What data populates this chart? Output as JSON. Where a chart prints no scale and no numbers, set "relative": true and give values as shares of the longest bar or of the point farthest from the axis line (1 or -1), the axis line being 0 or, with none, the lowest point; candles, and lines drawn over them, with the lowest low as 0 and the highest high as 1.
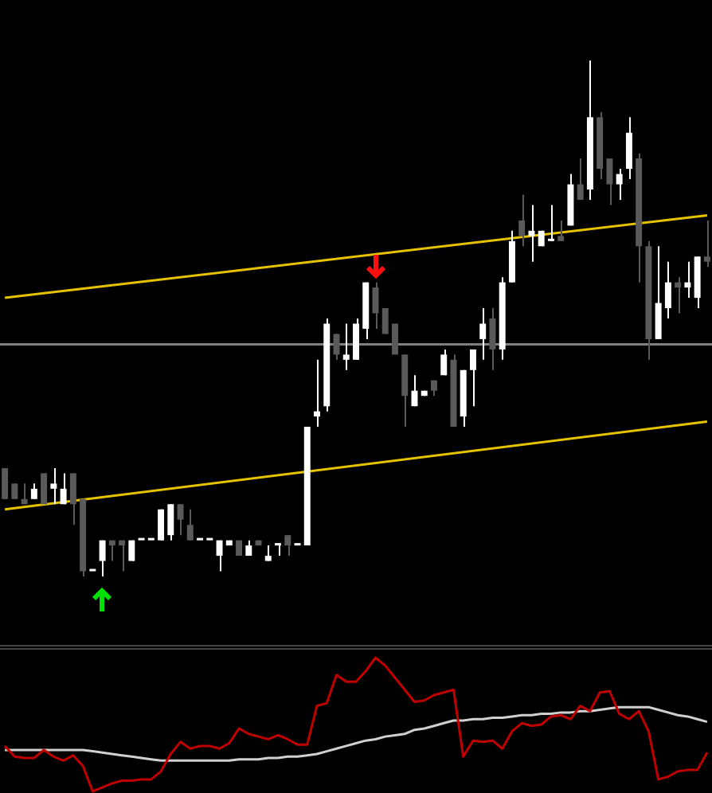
{
  "chart_data": [
    {
      "type": "candlestick",
      "relative": true,
      "categories": [
        null,
        null,
        null,
        null,
        null,
        null,
        null,
        null,
        null,
        null,
        null,
        null,
        null,
        null,
        null,
        null,
        null,
        null,
        null,
        null,
        null,
        null,
        null,
        null,
        null,
        null,
        null,
        null,
        null,
        null,
        null,
        null,
        null,
        null,
        null,
        null,
        null,
        null,
        null,
        null,
        null,
        null,
        null,
        null,
        null,
        null,
        null,
        null,
        null,
        null,
        null,
        null,
        null,
        null,
        null,
        null,
        null,
        null,
        null,
        null,
        null,
        null,
        null,
        null,
        null,
        null,
        null,
        null,
        null,
        null,
        null,
        null,
        null
      ],
      "ohlc": [
        [
          0.21,
          0.21,
          0.15,
          0.15
        ],
        [
          0.18,
          0.18,
          0.15,
          0.15
        ],
        [
          0.15,
          0.18,
          0.14,
          0.14
        ],
        [
          0.15,
          0.18,
          0.15,
          0.17
        ],
        [
          0.2,
          0.2,
          0.14,
          0.14
        ],
        [
          0.17,
          0.21,
          0.14,
          0.18
        ],
        [
          0.14,
          0.2,
          0.14,
          0.17
        ],
        [
          0.2,
          0.2,
          0.1,
          0.14
        ],
        [
          0.15,
          0.15,
          0,
          0.01
        ],
        [
          0.01,
          0.01,
          0.01,
          0.01
        ],
        [
          0.03,
          0.07,
          0,
          0.07
        ],
        [
          0.07,
          0.07,
          0.03,
          0.06
        ],
        [
          0.07,
          0.07,
          0.01,
          0.06
        ],
        [
          0.03,
          0.07,
          0.03,
          0.07
        ],
        [
          0.07,
          0.07,
          0.07,
          0.07
        ],
        [
          0.07,
          0.07,
          0.07,
          0.07
        ],
        [
          0.07,
          0.13,
          0.07,
          0.13
        ],
        [
          0.08,
          0.14,
          0.07,
          0.14
        ],
        [
          0.14,
          0.14,
          0.08,
          0.11
        ],
        [
          0.1,
          0.13,
          0.07,
          0.07
        ],
        [
          0.07,
          0.07,
          0.07,
          0.07
        ],
        [
          0.07,
          0.07,
          0.07,
          0.07
        ],
        [
          0.04,
          0.07,
          0.01,
          0.07
        ],
        [
          0.06,
          0.07,
          0.06,
          0.07
        ],
        [
          0.07,
          0.07,
          0.04,
          0.04
        ],
        [
          0.04,
          0.07,
          0.04,
          0.06
        ],
        [
          0.07,
          0.07,
          0.06,
          0.06
        ],
        [
          0.03,
          0.06,
          0.03,
          0.04
        ],
        [
          0.06,
          0.06,
          0.04,
          0.06
        ],
        [
          0.08,
          0.08,
          0.04,
          0.06
        ],
        [
          0.06,
          0.06,
          0.06,
          0.06
        ],
        [
          0.06,
          0.29,
          0.06,
          0.29
        ],
        [
          0.31,
          0.42,
          0.29,
          0.32
        ],
        [
          0.33,
          0.5,
          0.32,
          0.49
        ],
        [
          0.47,
          0.47,
          0.42,
          0.43
        ],
        [
          0.42,
          0.49,
          0.4,
          0.43
        ],
        [
          0.42,
          0.5,
          0.42,
          0.49
        ],
        [
          0.48,
          0.57,
          0.46,
          0.57
        ],
        [
          0.56,
          0.57,
          0.48,
          0.51
        ],
        [
          0.52,
          0.52,
          0.47,
          0.47
        ],
        [
          0.49,
          0.49,
          0.43,
          0.43
        ],
        [
          0.43,
          0.43,
          0.29,
          0.35
        ],
        [
          0.33,
          0.39,
          0.33,
          0.36
        ],
        [
          0.35,
          0.36,
          0.35,
          0.36
        ],
        [
          0.38,
          0.38,
          0.35,
          0.36
        ],
        [
          0.39,
          0.44,
          0.39,
          0.43
        ],
        [
          0.42,
          0.43,
          0.29,
          0.29
        ],
        [
          0.31,
          0.4,
          0.29,
          0.4
        ],
        [
          0.4,
          0.44,
          0.33,
          0.44
        ],
        [
          0.46,
          0.52,
          0.42,
          0.49
        ],
        [
          0.5,
          0.52,
          0.4,
          0.44
        ],
        [
          0.44,
          0.58,
          0.42,
          0.57
        ],
        [
          0.57,
          0.67,
          0.57,
          0.65
        ],
        [
          0.69,
          0.74,
          0.64,
          0.66
        ],
        [
          0.66,
          0.72,
          0.61,
          0.67
        ],
        [
          0.64,
          0.67,
          0.64,
          0.67
        ],
        [
          0.65,
          0.72,
          0.65,
          0.65
        ],
        [
          0.66,
          0.69,
          0.65,
          0.65
        ],
        [
          0.68,
          0.78,
          0.68,
          0.76
        ],
        [
          0.76,
          0.81,
          0.73,
          0.73
        ],
        [
          0.75,
          1,
          0.73,
          0.89
        ],
        [
          0.89,
          0.9,
          0.77,
          0.79
        ],
        [
          0.81,
          0.81,
          0.72,
          0.76
        ],
        [
          0.76,
          0.79,
          0.73,
          0.78
        ],
        [
          0.79,
          0.89,
          0.77,
          0.86
        ],
        [
          0.81,
          0.82,
          0.57,
          0.64
        ],
        [
          0.64,
          0.65,
          0.42,
          0.46
        ],
        [
          0.46,
          0.64,
          0.46,
          0.53
        ],
        [
          0.52,
          0.61,
          0.5,
          0.57
        ],
        [
          0.57,
          0.58,
          0.51,
          0.56
        ],
        [
          0.56,
          0.61,
          0.54,
          0.57
        ],
        [
          0.54,
          0.62,
          0.52,
          0.62
        ],
        [
          0.62,
          0.69,
          0.6,
          0.61
        ]
      ],
      "colors": [
        "#5a5a5a",
        "#5a5a5a",
        "#5a5a5a",
        "#ffffff",
        "#5a5a5a",
        "#ffffff",
        "#ffffff",
        "#5a5a5a",
        "#5a5a5a",
        "#ffffff",
        "#ffffff",
        "#5a5a5a",
        "#5a5a5a",
        "#ffffff",
        "#ffffff",
        "#ffffff",
        "#ffffff",
        "#ffffff",
        "#5a5a5a",
        "#5a5a5a",
        "#ffffff",
        "#ffffff",
        "#ffffff",
        "#ffffff",
        "#5a5a5a",
        "#ffffff",
        "#5a5a5a",
        "#ffffff",
        "#ffffff",
        "#5a5a5a",
        "#ffffff",
        "#ffffff",
        "#ffffff",
        "#ffffff",
        "#5a5a5a",
        "#ffffff",
        "#ffffff",
        "#ffffff",
        "#5a5a5a",
        "#5a5a5a",
        "#5a5a5a",
        "#5a5a5a",
        "#ffffff",
        "#ffffff",
        "#5a5a5a",
        "#ffffff",
        "#5a5a5a",
        "#ffffff",
        "#ffffff",
        "#ffffff",
        "#5a5a5a",
        "#ffffff",
        "#ffffff",
        "#5a5a5a",
        "#ffffff",
        "#ffffff",
        "#ffffff",
        "#5a5a5a",
        "#ffffff",
        "#5a5a5a",
        "#ffffff",
        "#5a5a5a",
        "#5a5a5a",
        "#ffffff",
        "#ffffff",
        "#5a5a5a",
        "#5a5a5a",
        "#ffffff",
        "#ffffff",
        "#5a5a5a",
        "#ffffff",
        "#ffffff",
        "#5a5a5a"
      ],
      "series": [
        {
          "type": "line",
          "color": "#e6c200",
          "values": [
            0.54,
            null,
            null,
            null,
            null,
            null,
            null,
            null,
            null,
            null,
            null,
            null,
            null,
            null,
            null,
            null,
            null,
            null,
            null,
            null,
            null,
            null,
            null,
            null,
            null,
            null,
            null,
            null,
            null,
            null,
            null,
            null,
            null,
            null,
            null,
            null,
            null,
            null,
            null,
            null,
            null,
            null,
            null,
            null,
            null,
            null,
            null,
            null,
            null,
            null,
            null,
            null,
            null,
            null,
            null,
            null,
            null,
            null,
            null,
            null,
            null,
            null,
            null,
            null,
            null,
            null,
            null,
            null,
            null,
            null,
            null,
            null,
            0.7
          ]
        },
        {
          "type": "line",
          "color": "#e6c200",
          "values": [
            0.13,
            null,
            null,
            null,
            null,
            null,
            null,
            null,
            null,
            null,
            null,
            null,
            null,
            null,
            null,
            null,
            null,
            null,
            null,
            null,
            null,
            null,
            null,
            null,
            null,
            null,
            null,
            null,
            null,
            null,
            null,
            null,
            null,
            null,
            null,
            null,
            null,
            null,
            null,
            null,
            null,
            null,
            null,
            null,
            null,
            null,
            null,
            null,
            null,
            null,
            null,
            null,
            null,
            null,
            null,
            null,
            null,
            null,
            null,
            null,
            null,
            null,
            null,
            null,
            null,
            null,
            null,
            null,
            null,
            null,
            null,
            null,
            0.3
          ]
        }
      ],
      "ref_lines": [
        {
          "axis": "y",
          "value": 0.45,
          "color": "#808080"
        }
      ]
    },
    {
      "type": "line",
      "relative": true,
      "categories": [
        null,
        null,
        null,
        null,
        null,
        null,
        null,
        null,
        null,
        null,
        null,
        null,
        null,
        null,
        null,
        null,
        null,
        null,
        null,
        null,
        null,
        null,
        null,
        null,
        null,
        null,
        null,
        null,
        null,
        null,
        null,
        null,
        null,
        null,
        null,
        null,
        null,
        null,
        null,
        null,
        null,
        null,
        null,
        null,
        null,
        null,
        null,
        null,
        null,
        null,
        null,
        null,
        null,
        null,
        null,
        null,
        null,
        null,
        null,
        null,
        null,
        null,
        null,
        null,
        null,
        null,
        null,
        null,
        null,
        null,
        null,
        null,
        null
      ],
      "series": [
        {
          "color": "#c00000",
          "values": [
            0.34,
            0.26,
            0.25,
            0.25,
            0.31,
            0.26,
            0.23,
            0.27,
            0.19,
            0,
            0.03,
            0.06,
            0.08,
            0.08,
            0.09,
            0.09,
            0.15,
            0.28,
            0.37,
            0.32,
            0.34,
            0.34,
            0.32,
            0.36,
            0.47,
            0.43,
            0.41,
            0.39,
            0.42,
            0.39,
            0.35,
            0.35,
            0.64,
            0.66,
            0.87,
            0.82,
            0.82,
            0.9,
            1,
            0.94,
            0.85,
            0.76,
            0.67,
            0.68,
            0.72,
            0.74,
            0.76,
            0.26,
            0.38,
            0.37,
            0.38,
            0.32,
            0.45,
            0.51,
            0.49,
            0.5,
            0.56,
            0.57,
            0.54,
            0.64,
            0.6,
            0.74,
            0.75,
            0.58,
            0.54,
            0.6,
            0.45,
            0.09,
            0.11,
            0.15,
            0.16,
            0.16,
            0.29
          ]
        },
        {
          "color": "#d0d0d0",
          "values": [
            0.31,
            0.31,
            0.31,
            0.31,
            0.31,
            0.31,
            0.31,
            0.31,
            0.31,
            0.3,
            0.29,
            0.28,
            0.27,
            0.26,
            0.25,
            0.24,
            0.23,
            0.23,
            0.23,
            0.23,
            0.23,
            0.23,
            0.23,
            0.23,
            0.24,
            0.24,
            0.24,
            0.25,
            0.25,
            0.26,
            0.26,
            0.27,
            0.28,
            0.3,
            0.32,
            0.34,
            0.36,
            0.38,
            0.39,
            0.41,
            0.42,
            0.43,
            0.46,
            0.47,
            0.49,
            0.51,
            0.53,
            0.53,
            0.54,
            0.54,
            0.55,
            0.55,
            0.56,
            0.57,
            0.57,
            0.58,
            0.58,
            0.59,
            0.59,
            0.6,
            0.6,
            0.61,
            0.62,
            0.63,
            0.63,
            0.63,
            0.63,
            0.61,
            0.59,
            0.57,
            0.56,
            0.54,
            0.52
          ]
        }
      ]
    }
  ]
}
